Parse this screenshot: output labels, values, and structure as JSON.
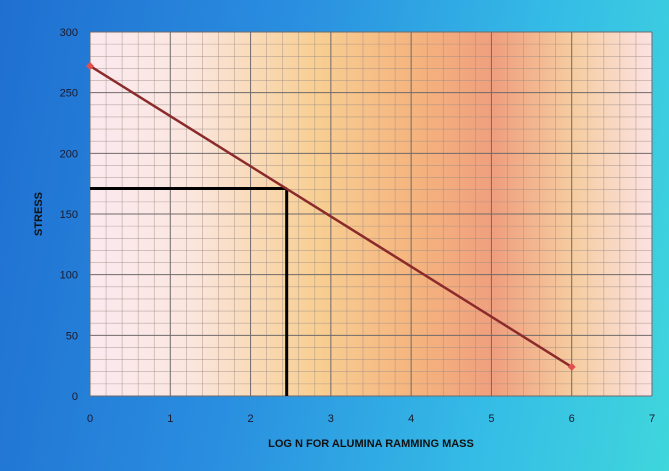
{
  "chart_data": {
    "type": "line",
    "title": "",
    "xlabel": "LOG N FOR ALUMINA RAMMING MASS",
    "ylabel": "STRESS",
    "xlim": [
      0,
      7
    ],
    "ylim": [
      0,
      300
    ],
    "xticks": [
      "0",
      "1",
      "2",
      "3",
      "4",
      "5",
      "6",
      "7"
    ],
    "yticks": [
      "0",
      "50",
      "100",
      "150",
      "200",
      "250",
      "300"
    ],
    "grid": true,
    "series": [
      {
        "x": [
          0,
          6
        ],
        "y": [
          272,
          24
        ],
        "color": "#8b2a2a"
      }
    ],
    "reference_point": {
      "x": 2.45,
      "y": 171
    },
    "reference_line_color": "#000000",
    "marker_color": "#e05050"
  }
}
